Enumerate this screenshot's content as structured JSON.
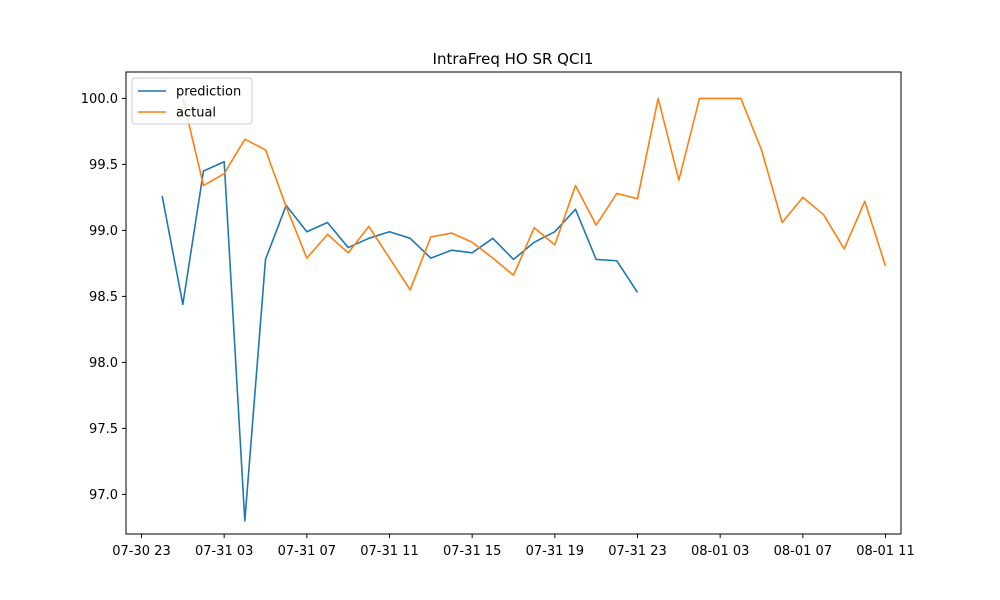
{
  "chart_data": {
    "type": "line",
    "title": "IntraFreq HO SR QCI1",
    "xlabel": "",
    "ylabel": "",
    "x_tick_labels": [
      "07-30 23",
      "07-31 03",
      "07-31 07",
      "07-31 11",
      "07-31 15",
      "07-31 19",
      "07-31 23",
      "08-01 03",
      "08-01 07",
      "08-01 11"
    ],
    "y_tick_labels": [
      "97.0",
      "97.5",
      "98.0",
      "98.5",
      "99.0",
      "99.5",
      "100.0"
    ],
    "ylim": [
      96.7,
      100.2
    ],
    "xlim": [
      "07-30 22:15",
      "08-01 11:45"
    ],
    "grid": false,
    "legend_position": "upper-left",
    "series": [
      {
        "name": "prediction",
        "color": "#1f77b4",
        "x": [
          "07-31 00",
          "07-31 01",
          "07-31 02",
          "07-31 03",
          "07-31 04",
          "07-31 05",
          "07-31 06",
          "07-31 07",
          "07-31 08",
          "07-31 09",
          "07-31 10",
          "07-31 11",
          "07-31 12",
          "07-31 13",
          "07-31 14",
          "07-31 15",
          "07-31 16",
          "07-31 17",
          "07-31 18",
          "07-31 19",
          "07-31 20",
          "07-31 21",
          "07-31 22",
          "07-31 23"
        ],
        "values": [
          99.26,
          98.44,
          99.45,
          99.52,
          96.8,
          98.78,
          99.19,
          98.99,
          99.06,
          98.87,
          98.94,
          98.99,
          98.94,
          98.79,
          98.85,
          98.83,
          98.94,
          98.78,
          98.91,
          98.99,
          99.16,
          98.78,
          98.77,
          98.53
        ]
      },
      {
        "name": "actual",
        "color": "#ff7f0e",
        "x": [
          "07-31 01",
          "07-31 02",
          "07-31 03",
          "07-31 04",
          "07-31 05",
          "07-31 06",
          "07-31 07",
          "07-31 08",
          "07-31 09",
          "07-31 10",
          "07-31 11",
          "07-31 12",
          "07-31 13",
          "07-31 14",
          "07-31 15",
          "07-31 16",
          "07-31 17",
          "07-31 18",
          "07-31 19",
          "07-31 20",
          "07-31 21",
          "07-31 22",
          "07-31 23",
          "08-01 00",
          "08-01 01",
          "08-01 02",
          "08-01 03",
          "08-01 04",
          "08-01 05",
          "08-01 06",
          "08-01 07",
          "08-01 08",
          "08-01 09",
          "08-01 10",
          "08-01 11"
        ],
        "values": [
          100.0,
          99.34,
          99.43,
          99.69,
          99.61,
          99.18,
          98.79,
          98.97,
          98.83,
          99.03,
          98.79,
          98.55,
          98.95,
          98.98,
          98.91,
          98.79,
          98.66,
          99.02,
          98.89,
          99.34,
          99.04,
          99.28,
          99.24,
          100.0,
          99.38,
          100.0,
          100.0,
          100.0,
          99.61,
          99.06,
          99.25,
          99.12,
          98.86,
          99.22,
          98.73
        ]
      }
    ]
  }
}
